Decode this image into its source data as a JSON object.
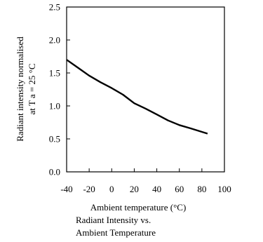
{
  "chart_data": {
    "type": "line",
    "title": "",
    "xlabel": "Ambient temperature (°C)",
    "ylabel_line1": "Radiant intensity normalised",
    "ylabel_line2": "at T a = 25 °C",
    "caption_line1": "Radiant Intensity vs.",
    "caption_line2": "Ambient Temperature",
    "xlim": [
      -40,
      100
    ],
    "ylim": [
      0.0,
      2.5
    ],
    "x_ticks": [
      "-40",
      "-20",
      "0",
      "20",
      "40",
      "60",
      "80",
      "100"
    ],
    "y_ticks": [
      "0.0",
      "0.5",
      "1.0",
      "1.5",
      "2.0",
      "2.5"
    ],
    "grid": false,
    "series": [
      {
        "x": [
          -40,
          -30,
          -20,
          -10,
          0,
          10,
          20,
          30,
          40,
          50,
          60,
          70,
          85
        ],
        "values": [
          1.7,
          1.58,
          1.46,
          1.36,
          1.27,
          1.17,
          1.04,
          0.96,
          0.87,
          0.78,
          0.71,
          0.66,
          0.58
        ]
      }
    ]
  }
}
